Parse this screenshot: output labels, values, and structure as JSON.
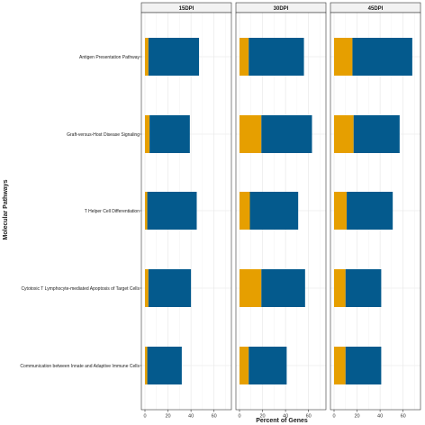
{
  "chart_data": {
    "type": "bar",
    "orientation": "horizontal",
    "stacked": true,
    "xlabel": "Percent of Genes",
    "ylabel": "Molecular Pathways",
    "xlim": [
      0,
      72
    ],
    "xticks": [
      0,
      20,
      40,
      60
    ],
    "grid": true,
    "legend": "none",
    "categories": [
      "Antigen Presentation Pathway",
      "Graft-versus-Host Disease Signaling",
      "T Helper Cell Differentiation",
      "Cytotoxic T Lymphocyte-mediated Apoptosis of Target Cells",
      "Communication between Innate and Adaptive Immune Cells"
    ],
    "colors": {
      "segment_1": "#E69F00",
      "segment_2": "#045A8D"
    },
    "panels": [
      {
        "label": "15DPI",
        "series": [
          {
            "values": [
              3,
              4,
              2,
              3,
              2
            ]
          },
          {
            "values": [
              44,
              35,
              43,
              37,
              30
            ]
          }
        ]
      },
      {
        "label": "30DPI",
        "series": [
          {
            "values": [
              8,
              19,
              9,
              19,
              8
            ]
          },
          {
            "values": [
              48,
              44,
              42,
              38,
              33
            ]
          }
        ]
      },
      {
        "label": "45DPI",
        "series": [
          {
            "values": [
              16,
              17,
              11,
              10,
              10
            ]
          },
          {
            "values": [
              52,
              40,
              40,
              31,
              31
            ]
          }
        ]
      }
    ]
  }
}
